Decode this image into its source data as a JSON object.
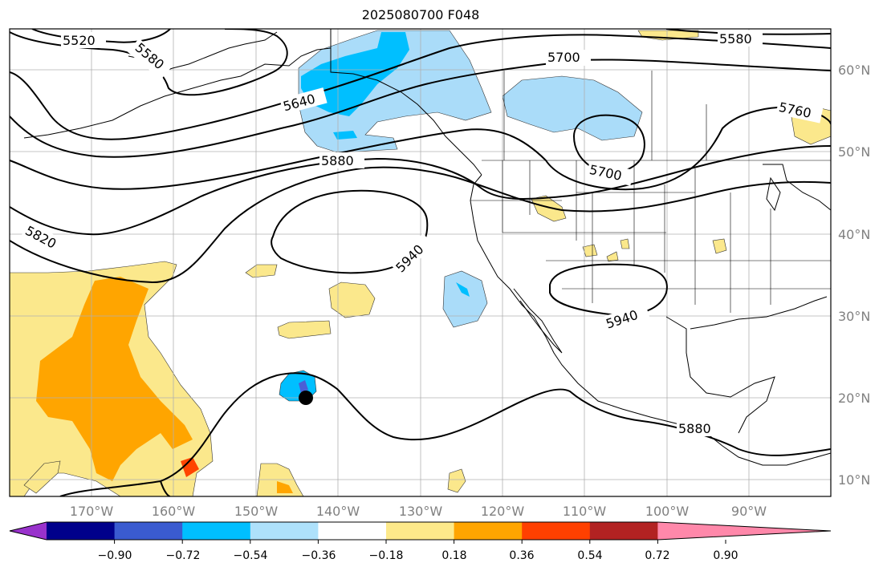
{
  "title": "2025080700 F048",
  "map": {
    "lat_labels": [
      "60°N",
      "50°N",
      "40°N",
      "30°N",
      "20°N",
      "10°N"
    ],
    "lon_labels": [
      "170°W",
      "160°W",
      "150°W",
      "140°W",
      "130°W",
      "120°W",
      "110°W",
      "100°W",
      "90°W"
    ],
    "contour_labels": [
      "5520",
      "5580",
      "5640",
      "5700",
      "5760",
      "5880",
      "5700",
      "5820",
      "5940",
      "5940",
      "5880",
      "5580"
    ],
    "colors": {
      "fill_negative_light": "#aadcf9",
      "fill_negative_mid": "#00bfff",
      "fill_negative_strong": "#4a5fd6",
      "fill_positive_light": "#fbe88c",
      "fill_positive_mid": "#ffa500",
      "fill_positive_strong": "#ff4500",
      "grid": "#b0b0b0",
      "contour": "#000000"
    }
  },
  "colorbar": {
    "tick_labels": [
      "−0.90",
      "−0.72",
      "−0.54",
      "−0.36",
      "−0.18",
      "0.18",
      "0.36",
      "0.54",
      "0.72",
      "0.90"
    ],
    "colors": [
      "#9932cc",
      "#00008b",
      "#3a5bd0",
      "#00bfff",
      "#aee1fb",
      "#ffffff",
      "#fde98a",
      "#ffa500",
      "#ff4000",
      "#b22222",
      "#ff88aa"
    ]
  }
}
